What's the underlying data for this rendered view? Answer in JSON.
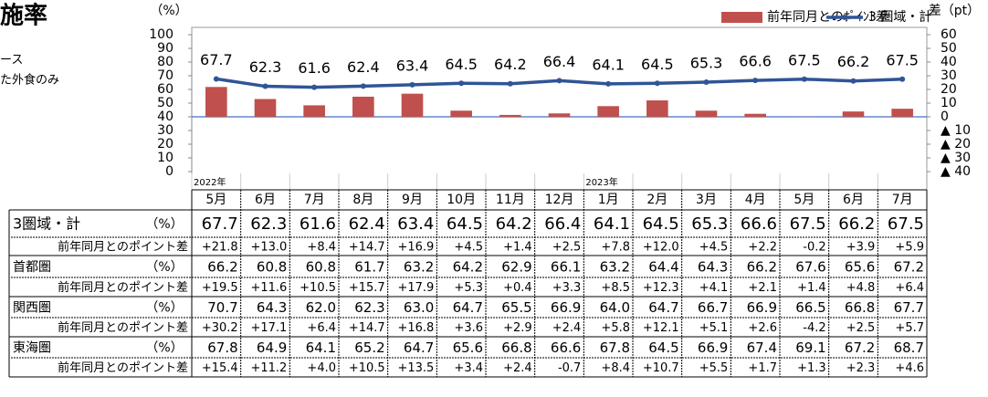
{
  "header": {
    "title": "施率",
    "notes": [
      "ース",
      "た外食のみ"
    ]
  },
  "chart_data": {
    "type": "bar_line",
    "y_label": "（%）",
    "y2_label": "差（pt）",
    "categories": [
      "5月",
      "6月",
      "7月",
      "8月",
      "9月",
      "10月",
      "11月",
      "12月",
      "1月",
      "2月",
      "3月",
      "4月",
      "5月",
      "6月",
      "7月"
    ],
    "years": [
      "2022年",
      null,
      null,
      null,
      null,
      null,
      null,
      null,
      "2023年",
      null,
      null,
      null,
      null,
      null,
      null
    ],
    "series": [
      {
        "name": "前年同月とのﾎﾟｲﾝﾄ差",
        "type": "bar",
        "axis": "y2",
        "color": "#c0504d",
        "values": [
          21.8,
          13.0,
          8.4,
          14.7,
          16.9,
          4.5,
          1.4,
          2.5,
          7.8,
          12.0,
          4.5,
          2.2,
          -0.2,
          3.9,
          5.9
        ]
      },
      {
        "name": "3 圏域・計",
        "type": "line",
        "color": "#2f5597",
        "values": [
          67.7,
          62.3,
          61.6,
          62.4,
          63.4,
          64.5,
          64.2,
          66.4,
          64.1,
          64.5,
          65.3,
          66.6,
          67.5,
          66.2,
          67.5
        ]
      }
    ],
    "ylim": [
      0,
      100
    ],
    "yticks": [
      0,
      10,
      20,
      30,
      40,
      50,
      60,
      70,
      80,
      90,
      100
    ],
    "y2lim": [
      -40,
      60
    ],
    "y2ticks": [
      {
        "value": -40,
        "label": "▲ 40"
      },
      {
        "value": -30,
        "label": "▲ 30"
      },
      {
        "value": -20,
        "label": "▲ 20"
      },
      {
        "value": -10,
        "label": "▲ 10"
      },
      0,
      10,
      20,
      30,
      40,
      50,
      60
    ],
    "grid": false
  },
  "table": {
    "rows": [
      {
        "label": "3圏域・計",
        "unit": "（%）",
        "values": [
          "67.7",
          "62.3",
          "61.6",
          "62.4",
          "63.4",
          "64.5",
          "64.2",
          "66.4",
          "64.1",
          "64.5",
          "65.3",
          "66.6",
          "67.5",
          "66.2",
          "67.5"
        ]
      },
      {
        "label": "前年同月とのポイント差",
        "values": [
          "+21.8",
          "+13.0",
          "+8.4",
          "+14.7",
          "+16.9",
          "+4.5",
          "+1.4",
          "+2.5",
          "+7.8",
          "+12.0",
          "+4.5",
          "+2.2",
          "-0.2",
          "+3.9",
          "+5.9"
        ]
      },
      {
        "label": "首都圏",
        "unit": "（%）",
        "values": [
          "66.2",
          "60.8",
          "60.8",
          "61.7",
          "63.2",
          "64.2",
          "62.9",
          "66.1",
          "63.2",
          "64.4",
          "64.3",
          "66.2",
          "67.6",
          "65.6",
          "67.2"
        ]
      },
      {
        "label": "前年同月とのポイント差",
        "values": [
          "+19.5",
          "+11.6",
          "+10.5",
          "+15.7",
          "+17.9",
          "+5.3",
          "+0.4",
          "+3.3",
          "+8.5",
          "+12.3",
          "+4.1",
          "+2.1",
          "+1.4",
          "+4.8",
          "+6.4"
        ]
      },
      {
        "label": "関西圏",
        "unit": "（%）",
        "values": [
          "70.7",
          "64.3",
          "62.0",
          "62.3",
          "63.0",
          "64.7",
          "65.5",
          "66.9",
          "64.0",
          "64.7",
          "66.7",
          "66.9",
          "66.5",
          "66.8",
          "67.7"
        ]
      },
      {
        "label": "前年同月とのポイント差",
        "values": [
          "+30.2",
          "+17.1",
          "+6.4",
          "+14.7",
          "+16.8",
          "+3.6",
          "+2.9",
          "+2.4",
          "+5.8",
          "+12.1",
          "+5.1",
          "+2.6",
          "-4.2",
          "+2.5",
          "+5.7"
        ]
      },
      {
        "label": "東海圏",
        "unit": "（%）",
        "values": [
          "67.8",
          "64.9",
          "64.1",
          "65.2",
          "64.7",
          "65.6",
          "66.8",
          "66.6",
          "67.8",
          "64.5",
          "66.9",
          "67.4",
          "69.1",
          "67.2",
          "68.7"
        ]
      },
      {
        "label": "前年同月とのポイント差",
        "values": [
          "+15.4",
          "+11.2",
          "+4.0",
          "+10.5",
          "+13.5",
          "+3.4",
          "+2.4",
          "-0.7",
          "+8.4",
          "+10.7",
          "+5.5",
          "+1.7",
          "+1.3",
          "+2.3",
          "+4.6"
        ]
      }
    ]
  }
}
